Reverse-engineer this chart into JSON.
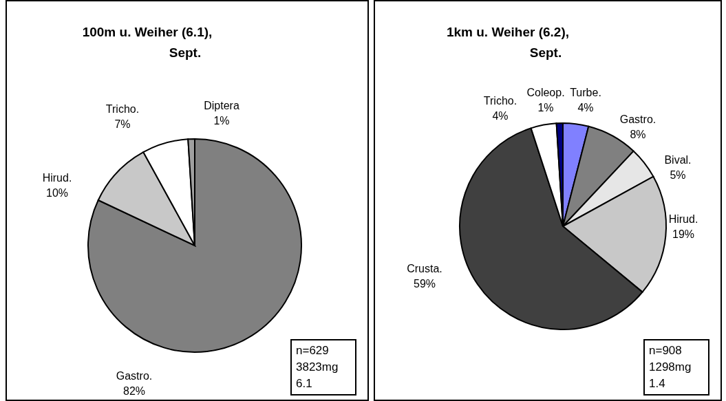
{
  "chart_data": [
    {
      "type": "pie",
      "title": "100m u. Weiher (6.1),\nSept.",
      "categories": [
        "Gastro.",
        "Hirud.",
        "Tricho.",
        "Diptera"
      ],
      "values": [
        82,
        10,
        7,
        1
      ],
      "value_labels": [
        "82%",
        "10%",
        "7%",
        "1%"
      ],
      "colors": [
        "#808080",
        "#c8c8c8",
        "#ffffff",
        "#a0a0a0"
      ],
      "legend": false,
      "annotations": [
        "n=629",
        "3823mg",
        "6.1"
      ]
    },
    {
      "type": "pie",
      "title": "1km u. Weiher (6.2),\nSept.",
      "categories": [
        "Turbe.",
        "Gastro.",
        "Bival.",
        "Hirud.",
        "Crusta.",
        "Tricho.",
        "Coleop."
      ],
      "values": [
        4,
        8,
        5,
        19,
        59,
        4,
        1
      ],
      "value_labels": [
        "4%",
        "8%",
        "5%",
        "19%",
        "59%",
        "4%",
        "1%"
      ],
      "colors": [
        "#8080ff",
        "#808080",
        "#e6e6e6",
        "#c8c8c8",
        "#404040",
        "#ffffff",
        "#000080"
      ],
      "legend": false,
      "annotations": [
        "n=908",
        "1298mg",
        "1.4"
      ]
    }
  ]
}
